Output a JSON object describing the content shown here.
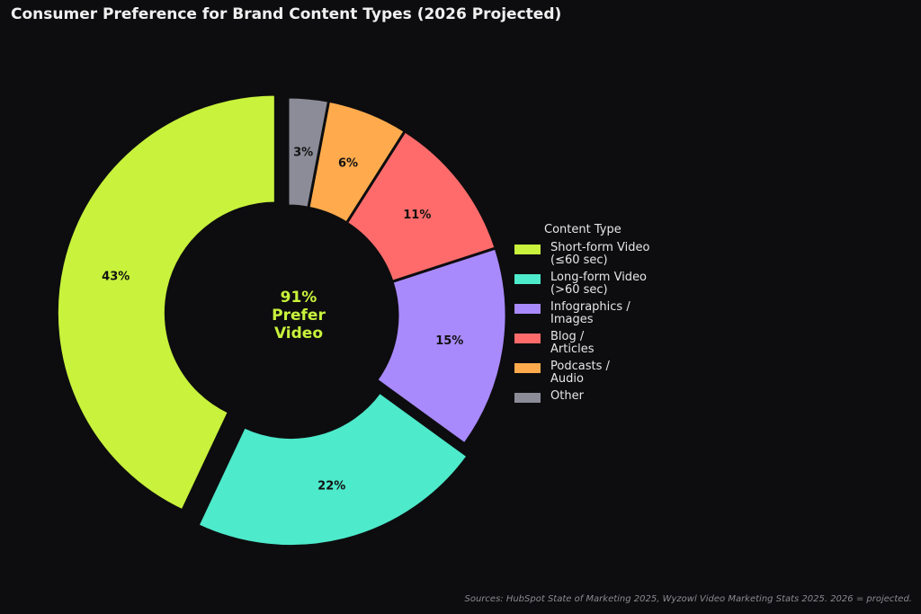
{
  "chart_data": {
    "type": "pie",
    "title": "Consumer Preference for Brand Content Types (2026 Projected)",
    "center_label": [
      "91%",
      "Prefer",
      "Video"
    ],
    "center_label_color": "#c8f23c",
    "legend_title": "Content Type",
    "legend_position": "right",
    "slices": [
      {
        "label": "Short-form Video\n(≤60 sec)",
        "value": 43,
        "value_label": "43%",
        "color": "#c8f23c",
        "exploded": true
      },
      {
        "label": "Long-form Video\n(>60 sec)",
        "value": 22,
        "value_label": "22%",
        "color": "#4deacb",
        "exploded": true
      },
      {
        "label": "Infographics /\nImages",
        "value": 15,
        "value_label": "15%",
        "color": "#a98afc",
        "exploded": false
      },
      {
        "label": "Blog /\nArticles",
        "value": 11,
        "value_label": "11%",
        "color": "#ff6b6b",
        "exploded": false
      },
      {
        "label": "Podcasts /\nAudio",
        "value": 6,
        "value_label": "6%",
        "color": "#ffab4d",
        "exploded": false
      },
      {
        "label": "Other",
        "value": 3,
        "value_label": "3%",
        "color": "#8c8c99",
        "exploded": false
      }
    ],
    "source": "Sources: HubSpot State of Marketing 2025, Wyzowl Video Marketing Stats 2025. 2026 = projected."
  }
}
